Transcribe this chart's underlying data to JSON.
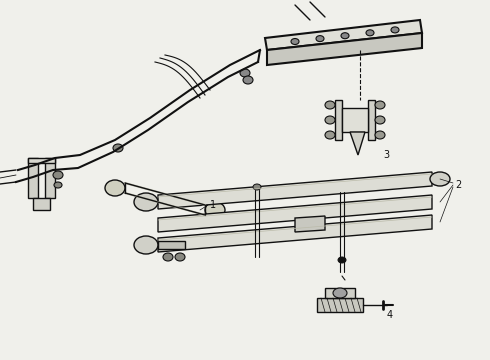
{
  "background_color": "#f0f0eb",
  "line_color": "#111111",
  "label_color": "#111111",
  "figsize": [
    4.9,
    3.6
  ],
  "dpi": 100
}
